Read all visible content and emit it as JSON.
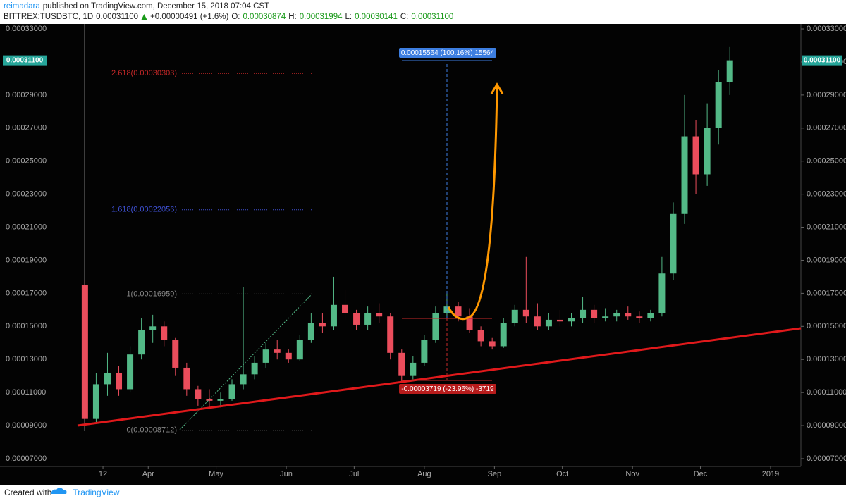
{
  "header": {
    "author": "reimadara",
    "published": "published on TradingView.com, December 15, 2018 07:04 CST",
    "symbol": "BITTREX:TUSDBTC, 1D",
    "last": "0.00031100",
    "change": "+0.00000491 (+1.6%)",
    "ohlc": [
      [
        "O:",
        "0.00030874"
      ],
      [
        "H:",
        "0.00031994"
      ],
      [
        "L:",
        "0.00030141"
      ],
      [
        "C:",
        "0.00031100"
      ]
    ]
  },
  "footer": {
    "created": "Created with",
    "brand": "TradingView"
  },
  "chart_data": {
    "type": "candlestick",
    "up_color": "#53b987",
    "down_color": "#eb4d5c",
    "x": [
      -8,
      -3,
      2,
      7,
      12,
      17,
      22,
      27,
      32,
      37,
      42,
      47,
      52,
      57,
      62,
      67,
      72,
      77,
      82,
      87,
      92,
      97,
      102,
      107,
      112,
      117,
      122,
      127,
      132,
      137,
      142,
      147,
      152,
      157,
      162,
      167,
      172,
      177,
      182,
      187,
      192,
      197,
      202,
      207,
      212,
      217,
      222,
      227,
      232,
      237,
      242,
      247,
      252,
      257,
      262,
      267,
      272,
      277
    ],
    "open": [
      0.000175,
      9.4e-05,
      0.000115,
      0.000122,
      0.000112,
      0.000133,
      0.000148,
      0.00015,
      0.000142,
      0.000125,
      0.000112,
      0.000106,
      0.000105,
      0.000106,
      0.000115,
      0.000121,
      0.000128,
      0.000136,
      0.000134,
      0.00013,
      0.000142,
      0.000152,
      0.00015,
      0.000163,
      0.000158,
      0.000151,
      0.000158,
      0.000156,
      0.000134,
      0.00012,
      0.000128,
      0.000142,
      0.000158,
      0.000162,
      0.000156,
      0.000148,
      0.000141,
      0.000138,
      0.000152,
      0.00016,
      0.000156,
      0.00015,
      0.000154,
      0.000153,
      0.000155,
      0.00016,
      0.000155,
      0.000156,
      0.000158,
      0.000156,
      0.000155,
      0.000158,
      0.000182,
      0.000218,
      0.000265,
      0.000242,
      0.00027,
      0.000298
    ],
    "high": [
      0.000178,
      0.000122,
      0.000134,
      0.000126,
      0.000138,
      0.000155,
      0.000157,
      0.000153,
      0.000143,
      0.000128,
      0.000114,
      0.000112,
      0.00011,
      0.000118,
      0.000174,
      0.000132,
      0.00014,
      0.000142,
      0.000136,
      0.000145,
      0.000158,
      0.000158,
      0.00018,
      0.000172,
      0.00016,
      0.000162,
      0.000164,
      0.000158,
      0.000136,
      0.000132,
      0.000145,
      0.000162,
      0.00017,
      0.000165,
      0.000161,
      0.00015,
      0.000143,
      0.000155,
      0.000163,
      0.000192,
      0.000164,
      0.000158,
      0.00016,
      0.000158,
      0.000168,
      0.000163,
      0.000161,
      0.00016,
      0.000162,
      0.000159,
      0.00016,
      0.000192,
      0.000225,
      0.00029,
      0.000275,
      0.000285,
      0.000305,
      0.000319
    ],
    "low": [
      9e-05,
      9.2e-05,
      0.000108,
      0.000108,
      0.00011,
      0.00013,
      0.00014,
      0.000138,
      0.00012,
      0.000108,
      0.000102,
      0.000101,
      0.000101,
      0.000105,
      0.000112,
      0.000118,
      0.000125,
      0.00013,
      0.000128,
      0.000129,
      0.00014,
      0.000146,
      0.000148,
      0.000154,
      0.000148,
      0.000148,
      0.000152,
      0.00013,
      0.000116,
      0.000118,
      0.000126,
      0.00014,
      0.000154,
      0.000153,
      0.000146,
      0.000138,
      0.000136,
      0.000137,
      0.00015,
      0.000152,
      0.000148,
      0.000148,
      0.00015,
      0.00015,
      0.000152,
      0.000152,
      0.000153,
      0.000153,
      0.000154,
      0.000152,
      0.000153,
      0.000156,
      0.000178,
      0.000212,
      0.00023,
      0.000235,
      0.00026,
      0.00029
    ],
    "close": [
      9.4e-05,
      0.000115,
      0.000122,
      0.000112,
      0.000133,
      0.000148,
      0.00015,
      0.000142,
      0.000125,
      0.000112,
      0.000106,
      0.000105,
      0.000106,
      0.000115,
      0.000121,
      0.000128,
      0.000136,
      0.000134,
      0.00013,
      0.000142,
      0.000152,
      0.00015,
      0.000163,
      0.000158,
      0.000151,
      0.000158,
      0.000156,
      0.000134,
      0.00012,
      0.000128,
      0.000142,
      0.000158,
      0.000162,
      0.000156,
      0.000148,
      0.000141,
      0.000138,
      0.000152,
      0.00016,
      0.000156,
      0.00015,
      0.000154,
      0.000153,
      0.000155,
      0.00016,
      0.000155,
      0.000156,
      0.000158,
      0.000156,
      0.000155,
      0.000158,
      0.000182,
      0.000218,
      0.000265,
      0.000242,
      0.00027,
      0.000298,
      0.000311
    ],
    "xlim": [
      -45.5,
      308.4
    ],
    "xticks": [
      {
        "value": 0,
        "label": "12"
      },
      {
        "value": 20,
        "label": "Apr"
      },
      {
        "value": 50,
        "label": "May"
      },
      {
        "value": 81,
        "label": "Jun"
      },
      {
        "value": 111,
        "label": "Jul"
      },
      {
        "value": 142,
        "label": "Aug"
      },
      {
        "value": 173,
        "label": "Sep"
      },
      {
        "value": 203,
        "label": "Oct"
      },
      {
        "value": 234,
        "label": "Nov"
      },
      {
        "value": 264,
        "label": "Dec"
      },
      {
        "value": 295,
        "label": "2019"
      }
    ],
    "ylim": [
      6.53e-05,
      0.000333
    ],
    "yticks": [
      {
        "value": 7e-05,
        "label": "0.00007000"
      },
      {
        "value": 9e-05,
        "label": "0.00009000"
      },
      {
        "value": 0.00011,
        "label": "0.00011000"
      },
      {
        "value": 0.00013,
        "label": "0.00013000"
      },
      {
        "value": 0.00015,
        "label": "0.00015000"
      },
      {
        "value": 0.00017,
        "label": "0.00017000"
      },
      {
        "value": 0.00019,
        "label": "0.00019000"
      },
      {
        "value": 0.00021,
        "label": "0.00021000"
      },
      {
        "value": 0.00023,
        "label": "0.00023000"
      },
      {
        "value": 0.00025,
        "label": "0.00025000"
      },
      {
        "value": 0.00027,
        "label": "0.00027000"
      },
      {
        "value": 0.00029,
        "label": "0.00029000"
      },
      {
        "value": 0.00031,
        "label": "0.00031000"
      },
      {
        "value": 0.00033,
        "label": "0.00033000"
      }
    ],
    "last_price": {
      "value": 0.000311,
      "label": "0.00031100",
      "color": "#26a69a"
    },
    "fib_levels": [
      {
        "value": 0.00030303,
        "label": "2.618(0.00030303)",
        "color": "#c62828"
      },
      {
        "value": 0.00022056,
        "label": "1.618(0.00022056)",
        "color": "#3f51d5"
      },
      {
        "value": 0.00016959,
        "label": "1(0.00016959)",
        "color": "#888888"
      },
      {
        "value": 8.712e-05,
        "label": "0(0.00008712)",
        "color": "#888888"
      }
    ],
    "measure": [
      {
        "label": "0.00015564 (100.16%) 15564",
        "color": "#3d7ee0"
      },
      {
        "label": "-0.00003719 (-23.96%) -3719",
        "color": "#b71c1c"
      }
    ]
  }
}
